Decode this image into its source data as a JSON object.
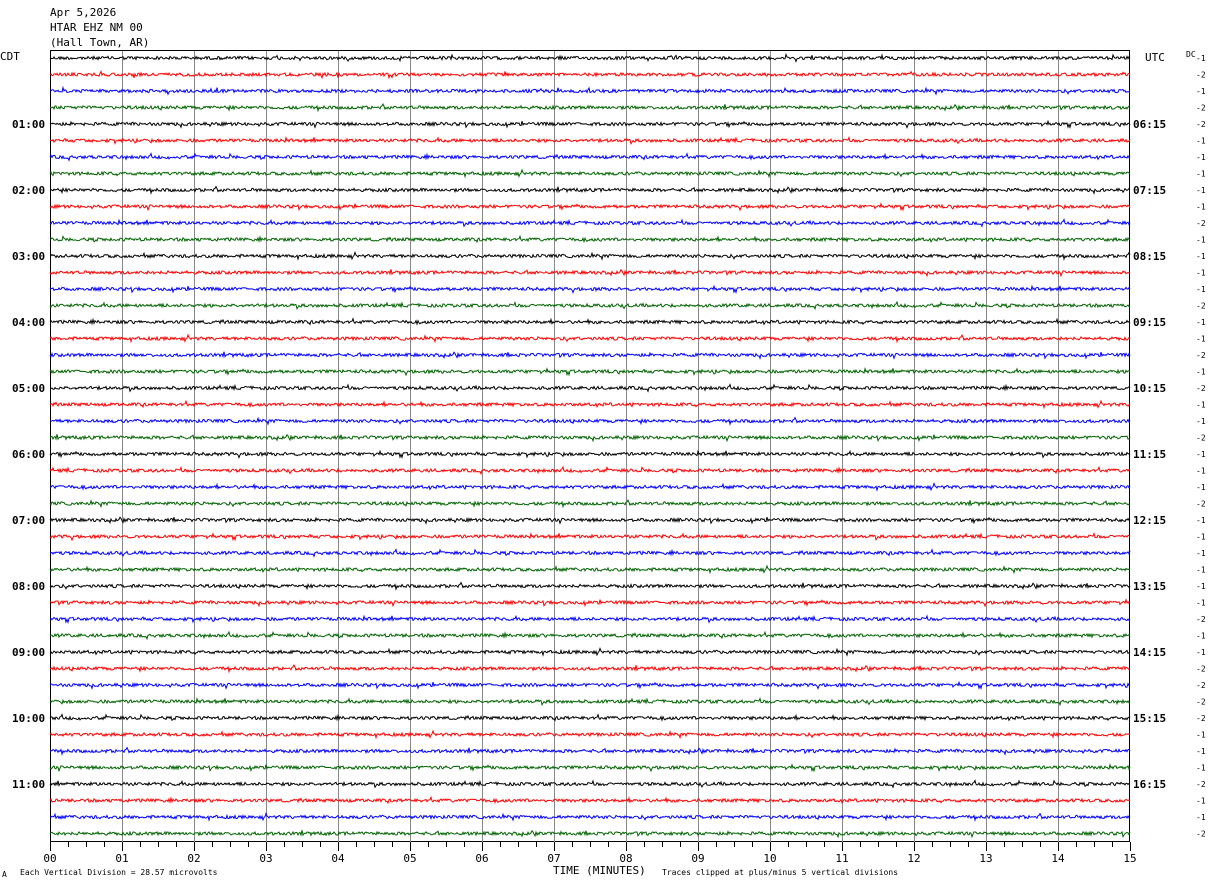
{
  "header": {
    "date": "Apr 5,2026",
    "station": "HTAR EHZ NM 00",
    "location": "(Hall Town, AR)"
  },
  "labels": {
    "left_zone": "CDT",
    "right_zone": "UTC",
    "dc": "DC",
    "xlabel": "TIME (MINUTES)",
    "scale_note": "Each Vertical Division =   28.57 microvolts",
    "clip_note": "Traces clipped at plus/minus 5 vertical divisions",
    "corner_mark": "A"
  },
  "chart_data": {
    "type": "line",
    "title": "",
    "xlabel": "TIME (MINUTES)",
    "ylabel": "",
    "xlim": [
      0,
      15
    ],
    "x_ticks": [
      "00",
      "01",
      "02",
      "03",
      "04",
      "05",
      "06",
      "07",
      "08",
      "09",
      "10",
      "11",
      "12",
      "13",
      "14",
      "15"
    ],
    "trace_minutes": 15,
    "trace_count": 48,
    "trace_colors": [
      "#000000",
      "#ff0000",
      "#0000ff",
      "#006400"
    ],
    "left_hour_labels": [
      "01:00",
      "02:00",
      "03:00",
      "04:00",
      "05:00",
      "06:00",
      "07:00",
      "08:00",
      "09:00",
      "10:00",
      "11:00"
    ],
    "right_hour_labels": [
      "06:15",
      "07:15",
      "08:15",
      "09:15",
      "10:15",
      "11:15",
      "12:15",
      "13:15",
      "14:15",
      "15:15",
      "16:15"
    ],
    "dc_offsets": [
      -1,
      -2,
      -1,
      -2,
      -2,
      -1,
      -1,
      -1,
      -1,
      -1,
      -2,
      -1,
      -1,
      -1,
      -1,
      -2,
      -1,
      -1,
      -2,
      -1,
      -2,
      -1,
      -1,
      -2,
      -1,
      -1,
      -1,
      -2,
      -1,
      -1,
      -1,
      -1,
      -1,
      -1,
      -2,
      -1,
      -1,
      -2,
      -2,
      -2,
      -2,
      -1,
      -1,
      -1,
      -2,
      -1,
      -1,
      -2
    ]
  }
}
